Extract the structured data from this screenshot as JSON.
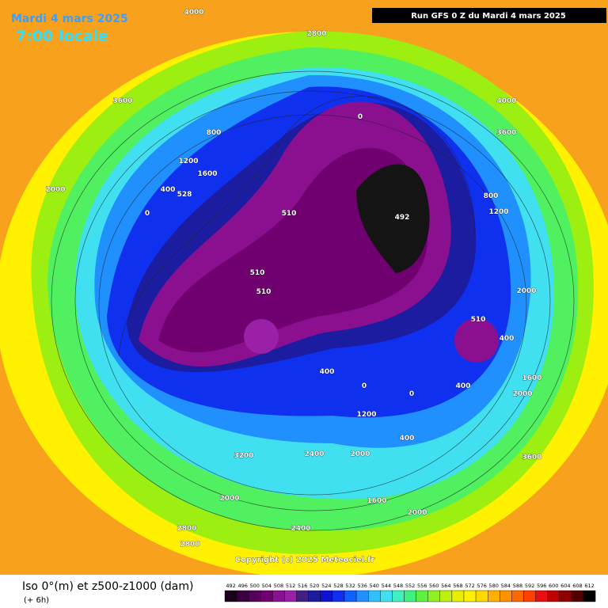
{
  "header": {
    "date": "Mardi 4 mars 2025",
    "time": "7:00 locale",
    "run": "Run GFS 0 Z du Mardi 4 mars 2025"
  },
  "footer": {
    "title": "Iso 0°(m) et z500-z1000 (dam)",
    "step": "(+ 6h)",
    "copyright": "Copyright (c) 2025 Meteociel.fr"
  },
  "colorbar": {
    "labels": [
      492,
      496,
      500,
      504,
      508,
      512,
      516,
      520,
      524,
      528,
      532,
      536,
      540,
      544,
      548,
      552,
      556,
      560,
      564,
      568,
      572,
      576,
      580,
      584,
      588,
      592,
      596,
      600,
      604,
      608,
      612
    ],
    "colors": [
      "#1a001a",
      "#3a0040",
      "#55005a",
      "#700070",
      "#8a1090",
      "#9a20a8",
      "#402080",
      "#1c1ca0",
      "#1010d0",
      "#1030f0",
      "#1060ff",
      "#2090ff",
      "#30c0ff",
      "#40e0f0",
      "#40f0c0",
      "#40f080",
      "#60f040",
      "#90f020",
      "#c0f010",
      "#e8f000",
      "#fff000",
      "#ffd800",
      "#ffb000",
      "#ff9000",
      "#ff6800",
      "#ff4000",
      "#e81010",
      "#c00000",
      "#900000",
      "#500000",
      "#000000"
    ]
  },
  "map_labels": [
    "4000",
    "2800",
    "3600",
    "800",
    "1200",
    "1600",
    "2000",
    "400",
    "0",
    "0",
    "528",
    "510",
    "510",
    "510",
    "492",
    "400",
    "0",
    "1200",
    "2000",
    "2400",
    "3200",
    "2000",
    "2800",
    "2800",
    "2400",
    "1600",
    "2000",
    "3600",
    "1600",
    "2000",
    "400",
    "510",
    "0",
    "1200",
    "4000",
    "3600",
    "800",
    "2000",
    "400",
    "400"
  ]
}
